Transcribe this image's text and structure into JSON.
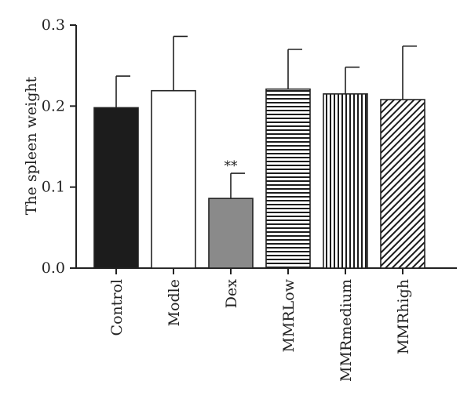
{
  "chart_data": {
    "type": "bar",
    "categories": [
      "Control",
      "Modle",
      "Dex",
      "MMRLow",
      "MMRmedium",
      "MMRhigh"
    ],
    "values": [
      0.198,
      0.219,
      0.086,
      0.221,
      0.215,
      0.208
    ],
    "error_upper": [
      0.237,
      0.286,
      0.117,
      0.27,
      0.248,
      0.274
    ],
    "fills": [
      "solid-black",
      "white",
      "solid-gray",
      "horizontal-stripes",
      "vertical-stripes",
      "diagonal-stripes"
    ],
    "annotations": [
      {
        "category": "Dex",
        "text": "**"
      }
    ],
    "title": "",
    "xlabel": "",
    "ylabel": "The spleen weight",
    "ylim": [
      0.0,
      0.3
    ],
    "yticks": [
      0.0,
      0.1,
      0.2,
      0.3
    ],
    "ytick_labels": [
      "0.0",
      "0.1",
      "0.2",
      "0.3"
    ],
    "grid": false,
    "colors": {
      "dark": "#1c1c1c",
      "gray": "#8a8a8a",
      "white": "#ffffff",
      "axis": "#222222"
    }
  }
}
